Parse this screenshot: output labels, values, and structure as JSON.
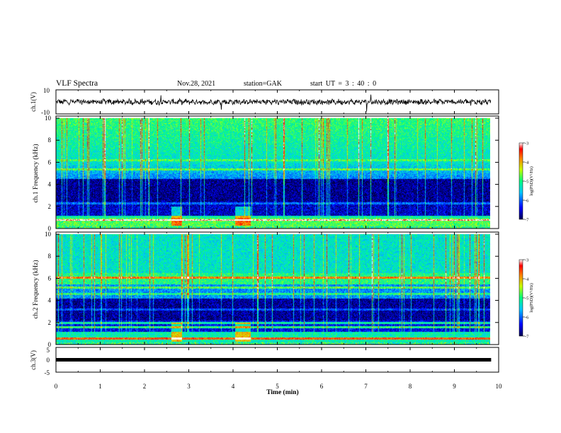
{
  "header": {
    "title": "VLF Spectra",
    "date": "Nov.28, 2021",
    "station": "station=GAK",
    "start_time": "start UT = 3 : 40 : 0"
  },
  "chart_data": [
    {
      "type": "line",
      "ylabel": "ch.1(V)",
      "xlim": [
        0,
        10
      ],
      "ylim": [
        -10,
        10
      ],
      "yticks": [
        "10",
        "-10"
      ],
      "baseline": 0,
      "description_noise": "continuous noisy waveform near 0 V"
    },
    {
      "type": "heatmap",
      "ylabel": "ch.1 Frequency (kHz)",
      "xlim": [
        0,
        10
      ],
      "ylim": [
        0,
        10
      ],
      "yticks": [
        "0",
        "2",
        "4",
        "6",
        "8",
        "10"
      ],
      "colorbar": {
        "label": "log(PSD)(V²/Hz)",
        "range": [
          -7,
          -3
        ],
        "ticks": [
          "-3",
          "-4",
          "-5",
          "-6",
          "-7"
        ]
      }
    },
    {
      "type": "heatmap",
      "ylabel": "ch.2 Frequency (kHz)",
      "xlim": [
        0,
        10
      ],
      "ylim": [
        0,
        10
      ],
      "yticks": [
        "0",
        "2",
        "4",
        "6",
        "8",
        "10"
      ],
      "colorbar": {
        "label": "log(PSD)(V²/Hz)",
        "range": [
          -7,
          -3
        ],
        "ticks": [
          "-3",
          "-4",
          "-5",
          "-6",
          "-7"
        ]
      }
    },
    {
      "type": "line",
      "ylabel": "ch.3(V)",
      "xlim": [
        0,
        10
      ],
      "ylim": [
        -5,
        5
      ],
      "yticks": [
        "5",
        "0",
        "-5"
      ],
      "values_x": [
        0,
        9.83
      ],
      "values_y": [
        0,
        0
      ]
    }
  ],
  "xaxis": {
    "label": "Time (min)",
    "ticks": [
      "0",
      "1",
      "2",
      "3",
      "4",
      "5",
      "6",
      "7",
      "8",
      "9",
      "10"
    ],
    "data_end": 9.83
  },
  "colors": {
    "frame": "#000000",
    "trace": "#000000",
    "background": "#ffffff"
  }
}
